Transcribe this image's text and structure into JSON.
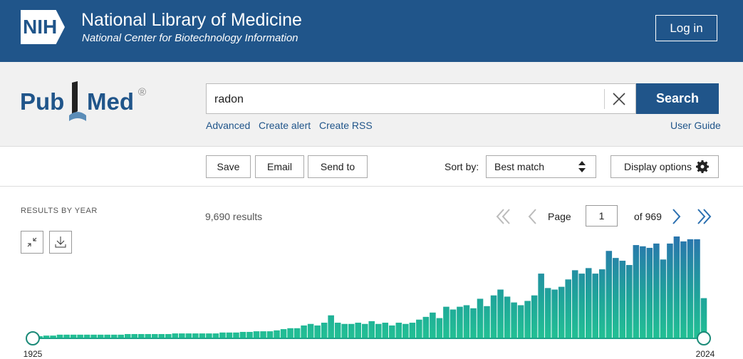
{
  "header": {
    "logo": "NIH",
    "title": "National Library of Medicine",
    "subtitle": "National Center for Biotechnology Information",
    "login": "Log in"
  },
  "search": {
    "logo_left": "Pub",
    "logo_right": "Med",
    "logo_mark": "®",
    "query": "radon",
    "button": "Search",
    "links": [
      "Advanced",
      "Create alert",
      "Create RSS"
    ],
    "user_guide": "User Guide"
  },
  "toolbar": {
    "actions": [
      "Save",
      "Email",
      "Send to"
    ],
    "sort_label": "Sort by:",
    "sort_value": "Best match",
    "display_options": "Display options"
  },
  "results": {
    "label": "RESULTS BY YEAR",
    "count": "9,690 results",
    "page_label": "Page",
    "page": 1,
    "of": "of 969"
  },
  "chart_data": {
    "type": "bar",
    "xlim": [
      1925,
      2024
    ],
    "values": [
      7,
      7,
      9,
      9,
      12,
      12,
      12,
      12,
      12,
      12,
      12,
      12,
      12,
      12,
      14,
      14,
      14,
      14,
      14,
      14,
      14,
      16,
      16,
      16,
      16,
      16,
      16,
      16,
      19,
      19,
      19,
      21,
      21,
      23,
      23,
      23,
      26,
      30,
      33,
      33,
      42,
      47,
      42,
      51,
      75,
      51,
      47,
      47,
      51,
      47,
      56,
      47,
      51,
      42,
      51,
      47,
      51,
      61,
      70,
      84,
      66,
      103,
      94,
      103,
      108,
      98,
      129,
      105,
      140,
      159,
      136,
      117,
      108,
      122,
      140,
      211,
      164,
      159,
      168,
      192,
      222,
      211,
      229,
      211,
      225,
      285,
      262,
      253,
      239,
      304,
      300,
      295,
      309,
      257,
      309,
      332,
      316,
      323,
      323,
      131
    ]
  }
}
